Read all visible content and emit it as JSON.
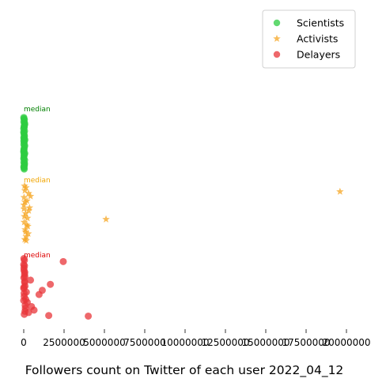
{
  "chart_data": {
    "type": "scatter",
    "title": "",
    "xlabel": "Followers count on Twitter of each user 2022_04_12",
    "ylabel": "",
    "xlim": [
      -900000,
      21000000
    ],
    "xticks": [
      0,
      2500000,
      5000000,
      7500000,
      10000000,
      12500000,
      15000000,
      17500000,
      20000000
    ],
    "xtick_labels": [
      "0",
      "2500000",
      "5000000",
      "7500000",
      "10000000",
      "12500000",
      "15000000",
      "17500000",
      "20000000"
    ],
    "grid": false,
    "legend_position": "top-right",
    "median_label": "median",
    "series": [
      {
        "name": "Scientists",
        "marker": "circle",
        "color": "#2ecc40",
        "median_color": "#008000",
        "x": [
          30000,
          5000,
          40000,
          12000,
          55000,
          8000,
          22000,
          65000,
          3000,
          18000,
          45000,
          9000,
          28000,
          70000,
          6000,
          35000,
          15000,
          50000,
          2000,
          25000,
          60000,
          11000,
          38000,
          4000,
          20000,
          48000,
          7000,
          32000,
          14000,
          58000,
          10000,
          42000,
          1000,
          26000,
          52000,
          17000,
          36000,
          5000,
          24000,
          44000
        ],
        "y": [
          0.04,
          0.08,
          0.12,
          0.16,
          0.2,
          0.24,
          0.28,
          0.32,
          0.36,
          0.4,
          0.44,
          0.48,
          0.52,
          0.56,
          0.6,
          0.64,
          0.68,
          0.72,
          0.76,
          0.8,
          0.84,
          0.88,
          0.92,
          0.96,
          0.06,
          0.14,
          0.22,
          0.3,
          0.38,
          0.46,
          0.54,
          0.62,
          0.7,
          0.78,
          0.86,
          0.94,
          0.1,
          0.34,
          0.58,
          0.82
        ]
      },
      {
        "name": "Activists",
        "marker": "star",
        "color": "#f5a623",
        "median_color": "#f0a500",
        "x": [
          19600000,
          5100000,
          420000,
          300000,
          360000,
          280000,
          140000,
          60000,
          90000,
          200000,
          30000,
          120000,
          10000,
          250000,
          70000,
          160000,
          40000,
          310000,
          20000,
          110000,
          80000,
          190000,
          50000,
          230000,
          15000,
          150000
        ],
        "y": [
          0.88,
          0.4,
          0.8,
          0.85,
          0.6,
          0.15,
          0.95,
          0.05,
          0.22,
          0.72,
          0.35,
          0.5,
          0.65,
          0.28,
          0.9,
          0.1,
          0.45,
          0.55,
          0.78,
          0.18,
          0.7,
          0.3,
          0.98,
          0.42,
          0.58,
          0.03
        ]
      },
      {
        "name": "Delayers",
        "marker": "circle",
        "color": "#e8353a",
        "median_color": "#dd0000",
        "x": [
          2450000,
          4000000,
          1650000,
          1150000,
          950000,
          1550000,
          420000,
          300000,
          640000,
          480000,
          220000,
          160000,
          0,
          50000,
          10000,
          80000,
          30000,
          120000,
          20000,
          60000,
          5000,
          40000,
          90000,
          15000,
          70000,
          25000,
          100000,
          35000,
          45000,
          55000,
          0,
          65000,
          12000,
          75000,
          8000
        ],
        "y": [
          0.93,
          0.02,
          0.55,
          0.45,
          0.38,
          0.03,
          0.62,
          0.08,
          0.12,
          0.18,
          0.25,
          0.42,
          0.88,
          0.72,
          0.66,
          0.52,
          0.35,
          0.3,
          0.78,
          0.58,
          0.48,
          0.95,
          0.2,
          0.82,
          0.68,
          0.4,
          0.15,
          0.05,
          0.86,
          0.6,
          0.28,
          0.75,
          0.98,
          0.1,
          0.5
        ]
      }
    ]
  }
}
